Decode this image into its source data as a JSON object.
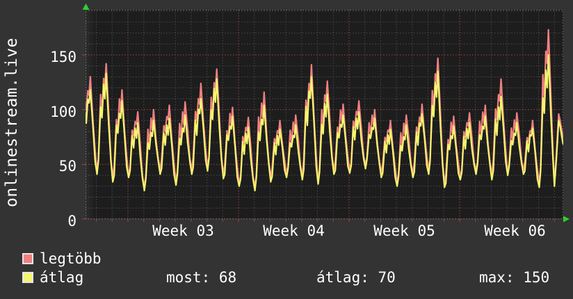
{
  "panel": {
    "bg": "#333333",
    "plot_bg": "#1d1d1d",
    "text_color": "#ffffff",
    "grid_minor_color": "#4b4b4b",
    "grid_major_color": "#a34545",
    "border_color": "#6a6a6a",
    "arrow_color": "#2fcf2f",
    "legend_swatch_border": "#e6e6e6"
  },
  "chart_data": {
    "type": "line",
    "title_vertical": "onlinestream.live",
    "x_tick_labels": [
      "Week 03",
      "Week 04",
      "Week 05",
      "Week 06"
    ],
    "y_tick_values": [
      0,
      50,
      100,
      150
    ],
    "ylim": [
      0,
      191.3
    ],
    "y_minor_step": 10,
    "days_per_week": 7,
    "week_line_day_indices": [
      3,
      10,
      17,
      24
    ],
    "num_day_lines": 30,
    "legend_position": "bottom-left",
    "grid": "dotted",
    "series": [
      {
        "name": "legtöbb",
        "color": "#f08080",
        "role": "daily max"
      },
      {
        "name": "átlag",
        "color": "#f5f56e",
        "role": "daily avg"
      }
    ],
    "days": [
      {
        "max": 130,
        "avg": 118,
        "trough": 60
      },
      {
        "max": 142,
        "avg": 133,
        "trough": 45
      },
      {
        "max": 118,
        "avg": 108,
        "trough": 38
      },
      {
        "max": 98,
        "avg": 88,
        "trough": 42
      },
      {
        "max": 100,
        "avg": 90,
        "trough": 30
      },
      {
        "max": 104,
        "avg": 92,
        "trough": 45
      },
      {
        "max": 107,
        "avg": 95,
        "trough": 35
      },
      {
        "max": 124,
        "avg": 110,
        "trough": 45
      },
      {
        "max": 137,
        "avg": 128,
        "trough": 48
      },
      {
        "max": 102,
        "avg": 94,
        "trough": 41
      },
      {
        "max": 93,
        "avg": 84,
        "trough": 34
      },
      {
        "max": 116,
        "avg": 104,
        "trough": 30
      },
      {
        "max": 90,
        "avg": 82,
        "trough": 38
      },
      {
        "max": 95,
        "avg": 86,
        "trough": 42
      },
      {
        "max": 141,
        "avg": 130,
        "trough": 40
      },
      {
        "max": 126,
        "avg": 114,
        "trough": 36
      },
      {
        "max": 105,
        "avg": 95,
        "trough": 45
      },
      {
        "max": 108,
        "avg": 98,
        "trough": 46
      },
      {
        "max": 100,
        "avg": 92,
        "trough": 50
      },
      {
        "max": 90,
        "avg": 82,
        "trough": 42
      },
      {
        "max": 95,
        "avg": 86,
        "trough": 34
      },
      {
        "max": 105,
        "avg": 96,
        "trough": 42
      },
      {
        "max": 147,
        "avg": 135,
        "trough": 45
      },
      {
        "max": 94,
        "avg": 85,
        "trough": 33
      },
      {
        "max": 97,
        "avg": 88,
        "trough": 40
      },
      {
        "max": 104,
        "avg": 94,
        "trough": 45
      },
      {
        "max": 128,
        "avg": 112,
        "trough": 40
      },
      {
        "max": 97,
        "avg": 88,
        "trough": 44
      },
      {
        "max": 90,
        "avg": 83,
        "trough": 45
      },
      {
        "max": 173,
        "avg": 150,
        "trough": 33
      }
    ],
    "tail_trough": 32,
    "tail": {
      "max": [
        [
          0,
          34
        ],
        [
          0.12,
          58
        ],
        [
          0.27,
          96
        ],
        [
          0.36,
          90
        ],
        [
          0.46,
          82
        ],
        [
          0.56,
          74
        ]
      ],
      "avg": [
        [
          0,
          30
        ],
        [
          0.12,
          54
        ],
        [
          0.27,
          90
        ],
        [
          0.36,
          85
        ],
        [
          0.46,
          76
        ],
        [
          0.56,
          68
        ]
      ]
    },
    "stats": {
      "most": "most: 68",
      "atlag": "átlag: 70",
      "max": "max: 150"
    }
  }
}
